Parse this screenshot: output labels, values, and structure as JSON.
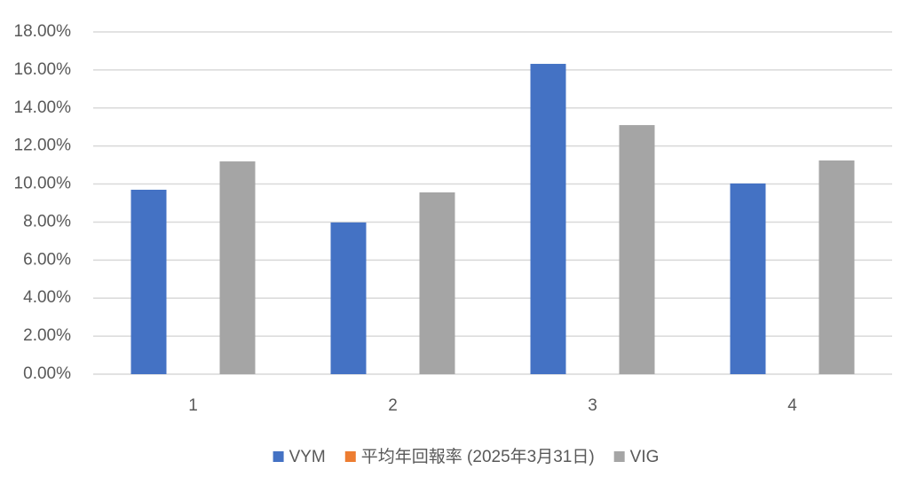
{
  "chart_data": {
    "type": "bar",
    "categories": [
      "1",
      "2",
      "3",
      "4"
    ],
    "series": [
      {
        "name": "VYM",
        "color": "#4472c4",
        "values": [
          9.7,
          7.98,
          16.32,
          10.03
        ]
      },
      {
        "name": "平均年回報率 (2025年3月31日)",
        "color": "#ed7d31",
        "values": [
          null,
          null,
          null,
          null
        ]
      },
      {
        "name": "VIG",
        "color": "#a5a5a5",
        "values": [
          11.19,
          9.56,
          13.1,
          11.24
        ]
      }
    ],
    "ylim": [
      0,
      18
    ],
    "yticks": [
      {
        "value": 0,
        "label": "0.00%"
      },
      {
        "value": 2,
        "label": "2.00%"
      },
      {
        "value": 4,
        "label": "4.00%"
      },
      {
        "value": 6,
        "label": "6.00%"
      },
      {
        "value": 8,
        "label": "8.00%"
      },
      {
        "value": 10,
        "label": "10.00%"
      },
      {
        "value": 12,
        "label": "12.00%"
      },
      {
        "value": 14,
        "label": "14.00%"
      },
      {
        "value": 16,
        "label": "16.00%"
      },
      {
        "value": 18,
        "label": "18.00%"
      }
    ],
    "grid": true,
    "legend": "bottom"
  }
}
